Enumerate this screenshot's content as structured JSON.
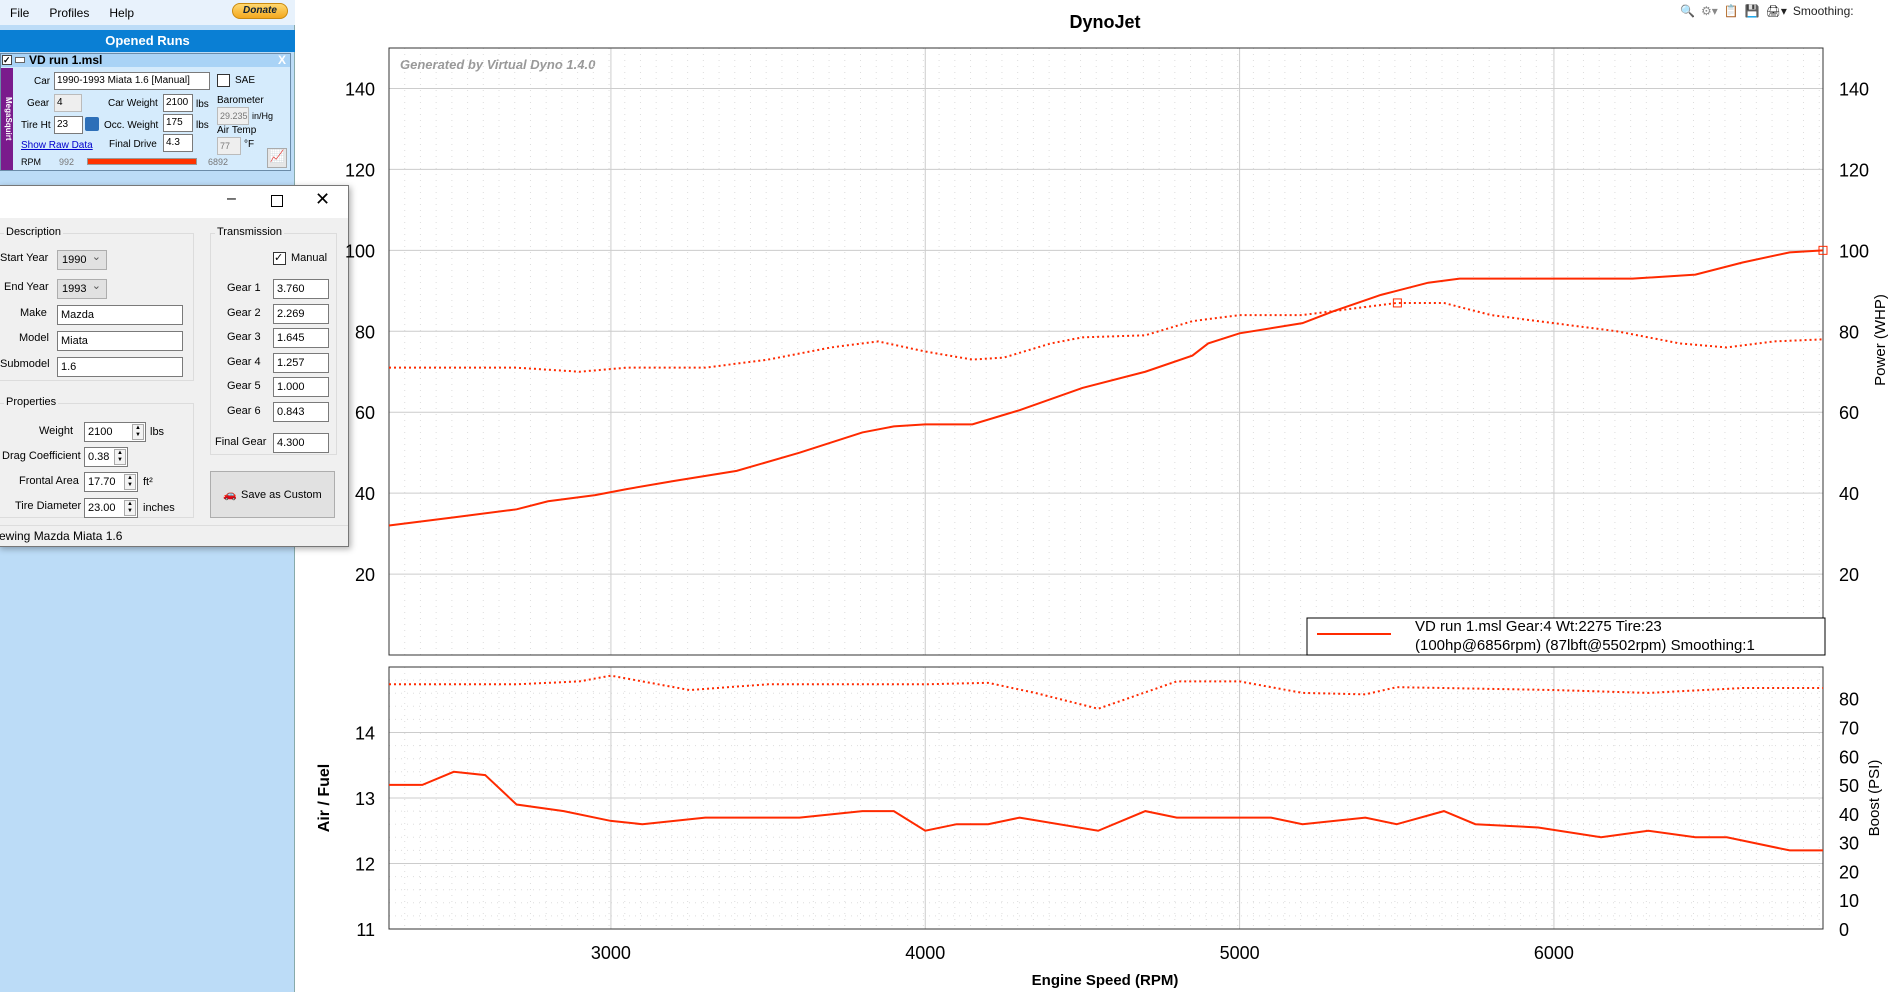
{
  "menu": {
    "items": [
      "File",
      "Profiles",
      "Help"
    ],
    "donate": "Donate"
  },
  "sidebar": {
    "title": "Opened Runs",
    "run": {
      "name": "VD run 1.msl",
      "checked": true,
      "close": "X",
      "side_tab": "MegaSquirt",
      "car_label": "Car",
      "car": "1990-1993 Miata 1.6 [Manual]",
      "sae_label": "SAE",
      "sae_checked": false,
      "gear_label": "Gear",
      "gear": "4",
      "car_weight_label": "Car Weight",
      "car_weight": "2100",
      "lbs": "lbs",
      "barometer_label": "Barometer",
      "barometer": "29.235",
      "baro_unit": "in/Hg",
      "tire_label": "Tire Ht",
      "tire": "23",
      "occ_weight_label": "Occ. Weight",
      "occ_weight": "175",
      "air_temp_label": "Air Temp",
      "air_temp": "77",
      "temp_unit": "°F",
      "raw_link": "Show Raw Data",
      "final_drive_label": "Final Drive",
      "final_drive": "4.3",
      "rpm_label": "RPM",
      "rpm_min": "992",
      "rpm_max": "6892"
    }
  },
  "dialog": {
    "description_title": "Description",
    "start_year_label": "Start Year",
    "start_year": "1990",
    "end_year_label": "End Year",
    "end_year": "1993",
    "make_label": "Make",
    "make": "Mazda",
    "model_label": "Model",
    "model": "Miata",
    "submodel_label": "Submodel",
    "submodel": "1.6",
    "properties_title": "Properties",
    "weight_label": "Weight",
    "weight": "2100",
    "weight_unit": "lbs",
    "drag_label": "Drag Coefficient",
    "drag": "0.38",
    "frontal_label": "Frontal Area",
    "frontal": "17.70",
    "frontal_unit": "ft²",
    "tire_label": "Tire Diameter",
    "tire": "23.00",
    "tire_unit": "inches",
    "transmission_title": "Transmission",
    "manual_label": "Manual",
    "manual_checked": true,
    "gears": [
      {
        "label": "Gear 1",
        "value": "3.760"
      },
      {
        "label": "Gear 2",
        "value": "2.269"
      },
      {
        "label": "Gear 3",
        "value": "1.645"
      },
      {
        "label": "Gear 4",
        "value": "1.257"
      },
      {
        "label": "Gear 5",
        "value": "1.000"
      },
      {
        "label": "Gear 6",
        "value": "0.843"
      }
    ],
    "final_gear_label": "Final Gear",
    "final_gear": "4.300",
    "save_label": "Save as Custom",
    "status": "ewing Mazda Miata 1.6"
  },
  "toolbar": {
    "smoothing_label": "Smoothing:"
  },
  "colors": {
    "accent": "#0a7fd4",
    "series": "#ff2a00"
  },
  "chart_data": [
    {
      "type": "line",
      "title": "DynoJet",
      "watermark": "Generated by Virtual Dyno 1.4.0",
      "xlim": [
        2294,
        6856
      ],
      "ylim": [
        0,
        150
      ],
      "yticks": [
        20,
        40,
        60,
        80,
        100,
        120,
        140
      ],
      "xticks": [
        3000,
        4000,
        5000,
        6000
      ],
      "right_ylabel": "Power (WHP)",
      "grid": true,
      "legend": {
        "placement": "bottom-right",
        "line1": "VD run 1.msl Gear:4 Wt:2275 Tire:23",
        "line2": "(100hp@6856rpm) (87lbft@5502rpm) Smoothing:1"
      },
      "series": [
        {
          "style": "solid",
          "x": [
            2294,
            2500,
            2700,
            2800,
            2950,
            3050,
            3200,
            3400,
            3600,
            3800,
            3900,
            4000,
            4150,
            4300,
            4500,
            4700,
            4850,
            4900,
            5000,
            5200,
            5300,
            5450,
            5600,
            5700,
            6000,
            6250,
            6450,
            6600,
            6750,
            6856
          ],
          "y": [
            32,
            34,
            36,
            38,
            39.5,
            41,
            43,
            45.5,
            50,
            55,
            56.5,
            57,
            57,
            60.5,
            66,
            70,
            74,
            77,
            79.5,
            82,
            85,
            89,
            92,
            93,
            93,
            93,
            94,
            97,
            99.5,
            100
          ],
          "marker": [
            6856,
            100
          ]
        },
        {
          "style": "dotted",
          "x": [
            2294,
            2500,
            2700,
            2900,
            3050,
            3300,
            3500,
            3700,
            3850,
            4000,
            4150,
            4250,
            4400,
            4500,
            4700,
            4850,
            5000,
            5200,
            5400,
            5500,
            5650,
            5800,
            6000,
            6200,
            6400,
            6550,
            6700,
            6856
          ],
          "y": [
            71,
            71,
            71,
            70,
            71,
            71,
            73,
            76,
            77.5,
            75,
            73,
            73.5,
            77,
            78.5,
            79,
            82.5,
            84,
            84,
            86,
            87,
            87,
            84,
            82,
            80,
            77,
            76,
            77.5,
            78
          ],
          "marker": [
            5502,
            87
          ]
        }
      ]
    },
    {
      "type": "line",
      "xlabel": "Engine Speed (RPM)",
      "xlim": [
        2294,
        6856
      ],
      "ylabel": "Air / Fuel",
      "ylim": [
        11,
        15
      ],
      "yticks": [
        11,
        12,
        13,
        14
      ],
      "right_ylabel": "Boost (PSI)",
      "right_ylim": [
        0,
        91
      ],
      "right_yticks": [
        0,
        10,
        20,
        30,
        40,
        50,
        60,
        70,
        80
      ],
      "xticks": [
        3000,
        4000,
        5000,
        6000
      ],
      "grid": true,
      "series": [
        {
          "style": "solid",
          "axis": "left",
          "x": [
            2294,
            2400,
            2500,
            2600,
            2700,
            2850,
            3000,
            3100,
            3300,
            3600,
            3800,
            3900,
            4000,
            4100,
            4200,
            4300,
            4550,
            4700,
            4800,
            5100,
            5200,
            5400,
            5500,
            5650,
            5750,
            5950,
            6150,
            6300,
            6450,
            6550,
            6750,
            6856
          ],
          "y": [
            13.2,
            13.2,
            13.4,
            13.35,
            12.9,
            12.8,
            12.65,
            12.6,
            12.7,
            12.7,
            12.8,
            12.8,
            12.5,
            12.6,
            12.6,
            12.7,
            12.5,
            12.8,
            12.7,
            12.7,
            12.6,
            12.7,
            12.6,
            12.8,
            12.6,
            12.55,
            12.4,
            12.5,
            12.4,
            12.4,
            12.2,
            12.2
          ]
        },
        {
          "style": "dotted",
          "axis": "right",
          "x": [
            2294,
            2700,
            2900,
            3000,
            3250,
            3500,
            4000,
            4200,
            4350,
            4550,
            4800,
            5000,
            5200,
            5400,
            5500,
            6000,
            6300,
            6600,
            6856
          ],
          "y": [
            85,
            85,
            86,
            88,
            83,
            85,
            85,
            85.5,
            82,
            76.5,
            86,
            86,
            82,
            81.5,
            84,
            83,
            82,
            83.7,
            83.7
          ]
        }
      ]
    }
  ]
}
